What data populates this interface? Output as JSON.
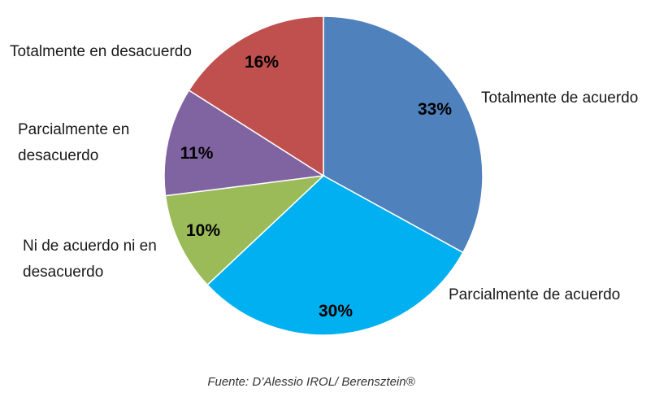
{
  "chart_data": {
    "type": "pie",
    "slices": [
      {
        "label": "Totalmente de acuerdo",
        "value": 33,
        "display": "33%",
        "color": "#4F81BD"
      },
      {
        "label": "Parcialmente de acuerdo",
        "value": 30,
        "display": "30%",
        "color": "#00B0F0"
      },
      {
        "label": "Ni de acuerdo ni en desacuerdo",
        "value": 10,
        "display": "10%",
        "color": "#9BBB59"
      },
      {
        "label": "Parcialmente en desacuerdo",
        "value": 11,
        "display": "11%",
        "color": "#8064A2"
      },
      {
        "label": "Totalmente en desacuerdo",
        "value": 16,
        "display": "16%",
        "color": "#C0504D"
      }
    ],
    "start": "12 o'clock",
    "direction": "clockwise",
    "legend": "none",
    "source_note": "Fuente: D’Alessio IROL/ Berensztein®"
  }
}
